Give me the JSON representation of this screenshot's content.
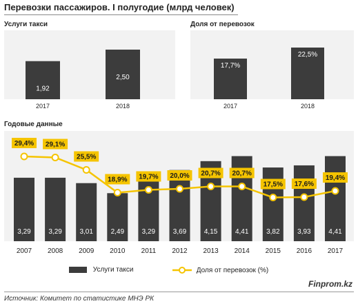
{
  "title": "Перевозки пассажиров. I полугодие (млрд человек)",
  "source": "Источник: Комитет по статистике МНЭ РК",
  "brand": "Finprom.kz",
  "colors": {
    "bar": "#3c3c3c",
    "line": "#f5c400",
    "panel_bg": "#f2f2f2",
    "label_bg": "#f5c400"
  },
  "chart_data": [
    {
      "type": "bar",
      "title": "Услуги такси",
      "categories": [
        "2017",
        "2018"
      ],
      "values": [
        1.92,
        2.5
      ],
      "value_labels": [
        "1,92",
        "2,50"
      ],
      "ylim": [
        0,
        2.5
      ]
    },
    {
      "type": "bar",
      "title": "Доля от перевозок",
      "categories": [
        "2017",
        "2018"
      ],
      "values": [
        17.7,
        22.5
      ],
      "value_labels": [
        "17,7%",
        "22,5%"
      ],
      "ylim": [
        0,
        22.5
      ]
    },
    {
      "type": "bar",
      "title": "Годовые данные",
      "categories": [
        "2007",
        "2008",
        "2009",
        "2010",
        "2011",
        "2012",
        "2013",
        "2014",
        "2015",
        "2016",
        "2017"
      ],
      "series": [
        {
          "name": "Услуги такси",
          "type": "bar",
          "values": [
            3.29,
            3.29,
            3.01,
            2.49,
            3.29,
            3.69,
            4.15,
            4.41,
            3.82,
            3.93,
            4.41
          ],
          "value_labels": [
            "3,29",
            "3,29",
            "3,01",
            "2,49",
            "3,29",
            "3,69",
            "4,15",
            "4,41",
            "3,82",
            "3,93",
            "4,41"
          ]
        },
        {
          "name": "Доля от перевозок (%)",
          "type": "line",
          "values": [
            29.4,
            29.1,
            25.5,
            18.9,
            19.7,
            20.0,
            20.7,
            20.7,
            17.5,
            17.6,
            19.4
          ],
          "value_labels": [
            "29,4%",
            "29,1%",
            "25,5%",
            "18,9%",
            "19,7%",
            "20,0%",
            "20,7%",
            "20,7%",
            "17,5%",
            "17,6%",
            "19,4%"
          ]
        }
      ],
      "legend": "bottom"
    }
  ]
}
